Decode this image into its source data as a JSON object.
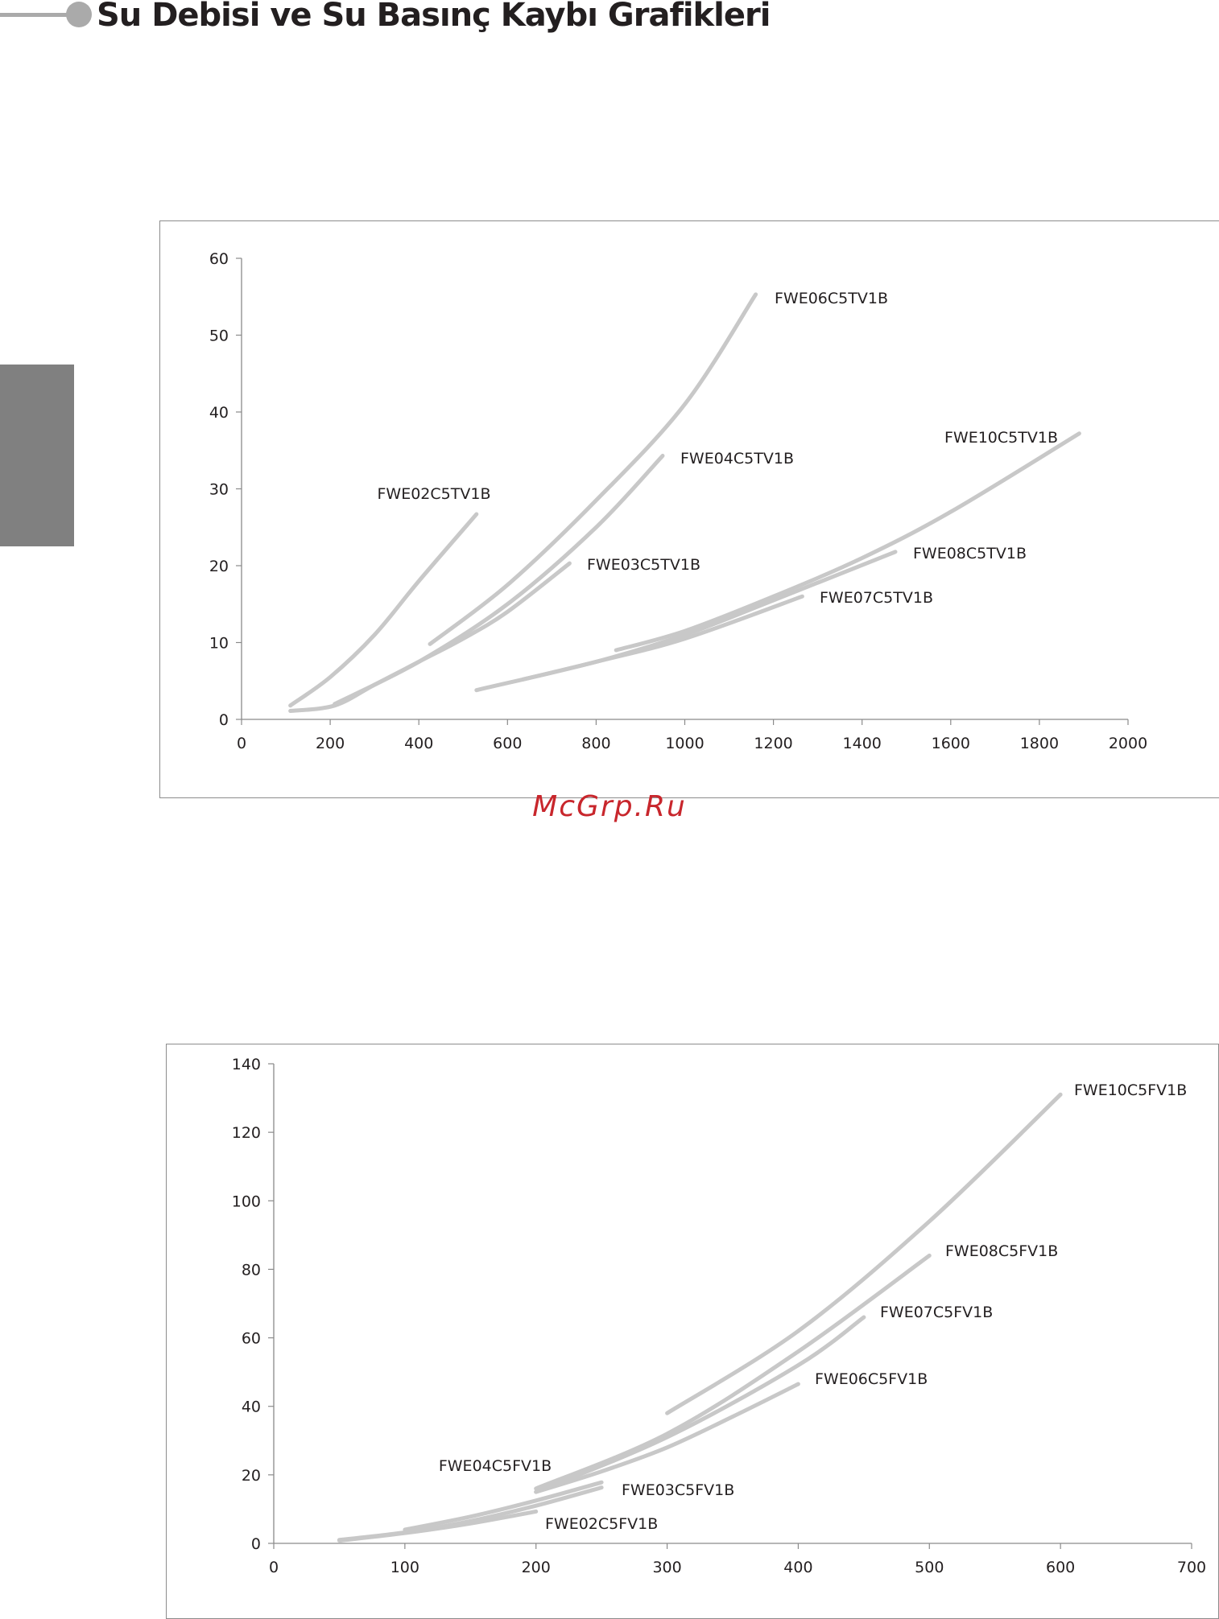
{
  "header": {
    "title": "Su Debisi ve Su Basınç Kaybı Grafikleri",
    "accent_color": "#aaaaaa",
    "title_color": "#231f20"
  },
  "side_tab": {
    "color": "#808080"
  },
  "watermark": {
    "text": "McGrp.Ru",
    "color": "#c8262c"
  },
  "chart_data": [
    {
      "type": "line",
      "title": "",
      "xlabel": "",
      "ylabel": "",
      "xlim": [
        0,
        2000
      ],
      "ylim": [
        0,
        60
      ],
      "x_ticks": [
        "0",
        "200",
        "400",
        "600",
        "800",
        "1000",
        "1200",
        "1400",
        "1600",
        "1800",
        "2000"
      ],
      "y_ticks": [
        "0",
        "10",
        "20",
        "30",
        "40",
        "50",
        "60"
      ],
      "grid": false,
      "legend": "inline labels",
      "line_color": "#c8c8c8",
      "series": [
        {
          "name": "FWE02C5TV1B",
          "x": [
            110,
            200,
            300,
            400,
            530
          ],
          "y": [
            1.8,
            5.5,
            11,
            18,
            26.7
          ]
        },
        {
          "name": "FWE03C5TV1B",
          "x": [
            110,
            210,
            300,
            400,
            500,
            600,
            740
          ],
          "y": [
            1.1,
            1.8,
            4.5,
            7.5,
            10.5,
            14,
            20.3
          ]
        },
        {
          "name": "FWE04C5TV1B",
          "x": [
            210,
            400,
            600,
            800,
            950
          ],
          "y": [
            2.0,
            7.5,
            15,
            25,
            34.3
          ]
        },
        {
          "name": "FWE06C5TV1B",
          "x": [
            425,
            600,
            800,
            1000,
            1160
          ],
          "y": [
            9.8,
            17.5,
            28.5,
            41,
            55.3
          ]
        },
        {
          "name": "FWE07C5TV1B",
          "x": [
            635,
            800,
            1000,
            1265
          ],
          "y": [
            5.2,
            7.5,
            10.5,
            16.0
          ]
        },
        {
          "name": "FWE08C5TV1B",
          "x": [
            530,
            800,
            1000,
            1200,
            1475
          ],
          "y": [
            3.8,
            7.5,
            11,
            15.5,
            21.8
          ]
        },
        {
          "name": "FWE10C5TV1B",
          "x": [
            845,
            1000,
            1200,
            1400,
            1600,
            1890
          ],
          "y": [
            9.0,
            11.5,
            16,
            21,
            27,
            37.2
          ]
        }
      ]
    },
    {
      "type": "line",
      "title": "",
      "xlabel": "",
      "ylabel": "",
      "xlim": [
        0,
        700
      ],
      "ylim": [
        0,
        140
      ],
      "x_ticks": [
        "0",
        "100",
        "200",
        "300",
        "400",
        "500",
        "600",
        "700"
      ],
      "y_ticks": [
        "0",
        "20",
        "40",
        "60",
        "80",
        "100",
        "120",
        "140"
      ],
      "grid": false,
      "legend": "inline labels",
      "line_color": "#c8c8c8",
      "series": [
        {
          "name": "FWE02C5FV1B",
          "x": [
            50,
            100,
            150,
            200
          ],
          "y": [
            0.8,
            3,
            5.8,
            9.3
          ]
        },
        {
          "name": "FWE03C5FV1B",
          "x": [
            50,
            100,
            150,
            200,
            250
          ],
          "y": [
            1.0,
            3.2,
            6.5,
            11,
            16.3
          ]
        },
        {
          "name": "FWE04C5FV1B",
          "x": [
            100,
            150,
            200,
            250
          ],
          "y": [
            4.0,
            7.8,
            12.5,
            17.8
          ]
        },
        {
          "name": "FWE06C5FV1B",
          "x": [
            200,
            250,
            300,
            350,
            400
          ],
          "y": [
            15.0,
            21,
            28,
            37,
            46.5
          ]
        },
        {
          "name": "FWE07C5FV1B",
          "x": [
            200,
            300,
            400,
            450
          ],
          "y": [
            15.0,
            31,
            52,
            66
          ]
        },
        {
          "name": "FWE08C5FV1B",
          "x": [
            200,
            300,
            400,
            500
          ],
          "y": [
            16.0,
            32,
            56,
            84
          ]
        },
        {
          "name": "FWE10C5FV1B",
          "x": [
            300,
            400,
            500,
            600
          ],
          "y": [
            38.0,
            62,
            94,
            131
          ]
        }
      ]
    }
  ]
}
